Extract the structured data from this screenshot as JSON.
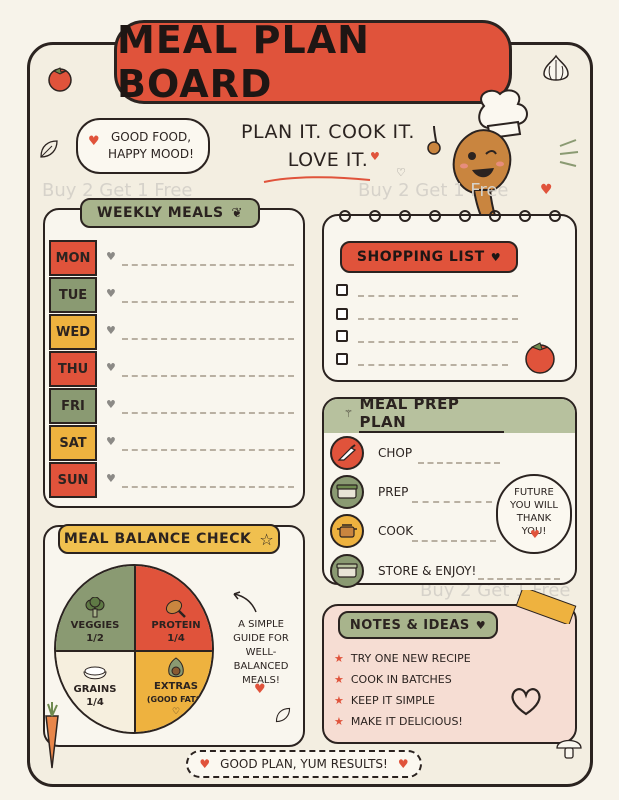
{
  "title": "Meal Plan Board",
  "bubble_left": "Good Food, Happy Mood!",
  "slogan": [
    "Plan it. Cook it.",
    "Love it."
  ],
  "weekly": {
    "label": "Weekly Meals",
    "days": [
      "MON",
      "TUE",
      "WED",
      "THU",
      "FRI",
      "SAT",
      "SUN"
    ],
    "day_colors": [
      "#e0533b",
      "#8a9a72",
      "#eeb23f",
      "#e0533b",
      "#8a9a72",
      "#eeb23f",
      "#e0533b"
    ]
  },
  "shopping": {
    "label": "Shopping List"
  },
  "prep": {
    "label": "Meal Prep Plan",
    "steps": [
      "Chop",
      "Prep",
      "Cook",
      "Store & Enjoy!"
    ],
    "bubble": "Future you will thank you!"
  },
  "balance": {
    "label": "Meal Balance Check",
    "veggies": "Veggies",
    "veggies_frac": "1/2",
    "protein": "Protein",
    "protein_frac": "1/4",
    "grains": "Grains",
    "grains_frac": "1/4",
    "extras": "Extras",
    "extras_sub": "(Good fats)",
    "guide": "A simple guide for well-balanced meals!"
  },
  "notes": {
    "label": "Notes & Ideas",
    "items": [
      "Try one new recipe",
      "Cook in batches",
      "Keep it simple",
      "Make it delicious!"
    ]
  },
  "footer": "Good plan, yum results!",
  "watermark": "Buy 2 Get 1 Free"
}
